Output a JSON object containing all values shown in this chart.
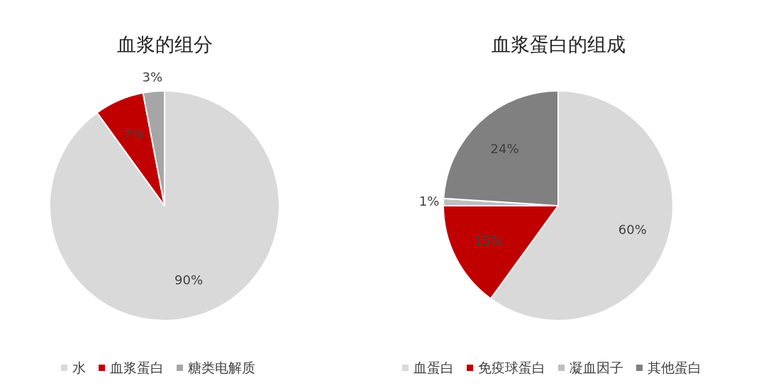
{
  "chart_data": [
    {
      "type": "pie",
      "title": "血浆的组分",
      "categories": [
        "水",
        "血浆蛋白",
        "糖类电解质"
      ],
      "values": [
        90,
        7,
        3
      ],
      "colors": [
        "#d9d9d9",
        "#c00000",
        "#a6a6a6"
      ],
      "value_labels": [
        "90%",
        "7%",
        "3%"
      ],
      "legend": "bottom"
    },
    {
      "type": "pie",
      "title": "血浆蛋白的组成",
      "categories": [
        "血蛋白",
        "免疫球蛋白",
        "凝血因子",
        "其他蛋白"
      ],
      "values": [
        60,
        15,
        1,
        24
      ],
      "colors": [
        "#d9d9d9",
        "#c00000",
        "#bfbfbf",
        "#808080"
      ],
      "value_labels": [
        "60%",
        "15%",
        "1%",
        "24%"
      ],
      "legend": "bottom"
    }
  ]
}
